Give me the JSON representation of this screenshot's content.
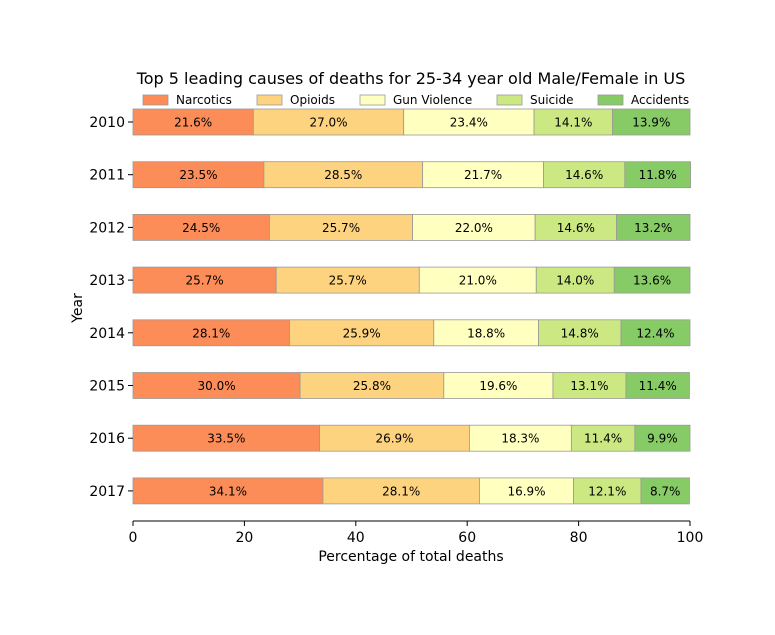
{
  "chart_data": {
    "type": "bar",
    "orientation": "horizontal",
    "stacked": true,
    "title": "Top 5 leading causes of deaths for 25-34 year old Male/Female in US",
    "xlabel": "Percentage of total deaths",
    "ylabel": "Year",
    "xlim": [
      0,
      100
    ],
    "xticks": [
      0,
      20,
      40,
      60,
      80,
      100
    ],
    "grid": false,
    "legend_position": "top",
    "categories": [
      "2010",
      "2011",
      "2012",
      "2013",
      "2014",
      "2015",
      "2016",
      "2017"
    ],
    "series": [
      {
        "name": "Narcotics",
        "color": "#fc8d59",
        "values": [
          21.6,
          23.5,
          24.5,
          25.7,
          28.1,
          30.0,
          33.5,
          34.1
        ],
        "labels": [
          "21.6%",
          "23.5%",
          "24.5%",
          "25.7%",
          "28.1%",
          "30.0%",
          "33.5%",
          "34.1%"
        ]
      },
      {
        "name": "Opioids",
        "color": "#fed380",
        "values": [
          27.0,
          28.5,
          25.7,
          25.7,
          25.9,
          25.8,
          26.9,
          28.1
        ],
        "labels": [
          "27.0%",
          "28.5%",
          "25.7%",
          "25.7%",
          "25.9%",
          "25.8%",
          "26.9%",
          "28.1%"
        ]
      },
      {
        "name": "Gun Violence",
        "color": "#ffffbf",
        "values": [
          23.4,
          21.7,
          22.0,
          21.0,
          18.8,
          19.6,
          18.3,
          16.9
        ],
        "labels": [
          "23.4%",
          "21.7%",
          "22.0%",
          "21.0%",
          "18.8%",
          "19.6%",
          "18.3%",
          "16.9%"
        ]
      },
      {
        "name": "Suicide",
        "color": "#cbe882",
        "values": [
          14.1,
          14.6,
          14.6,
          14.0,
          14.8,
          13.1,
          11.4,
          12.1
        ],
        "labels": [
          "14.1%",
          "14.6%",
          "14.6%",
          "14.0%",
          "14.8%",
          "13.1%",
          "11.4%",
          "12.1%"
        ]
      },
      {
        "name": "Accidents",
        "color": "#87cb66",
        "values": [
          13.9,
          11.8,
          13.2,
          13.6,
          12.4,
          11.4,
          9.9,
          8.7
        ],
        "labels": [
          "13.9%",
          "11.8%",
          "13.2%",
          "13.6%",
          "12.4%",
          "11.4%",
          "9.9%",
          "8.7%"
        ]
      }
    ]
  }
}
